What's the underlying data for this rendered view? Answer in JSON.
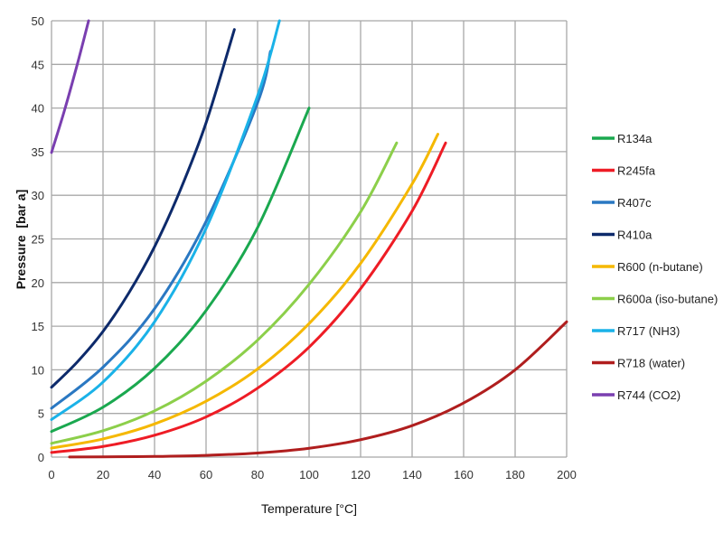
{
  "chart_data": {
    "type": "line",
    "title": "",
    "xlabel": "Temperature [°C]",
    "ylabel": "Pressure  [bar a]",
    "xlim": [
      0,
      200
    ],
    "ylim": [
      0,
      50
    ],
    "xticks": [
      0,
      20,
      40,
      60,
      80,
      100,
      120,
      140,
      160,
      180,
      200
    ],
    "yticks": [
      0,
      5,
      10,
      15,
      20,
      25,
      30,
      35,
      40,
      45,
      50
    ],
    "grid": true,
    "legend_position": "right",
    "series": [
      {
        "name": "R134a",
        "color": "#1aa84f",
        "x": [
          0,
          20,
          40,
          60,
          80,
          100
        ],
        "y": [
          2.93,
          5.72,
          10.17,
          16.8,
          26.3,
          40
        ]
      },
      {
        "name": "R245fa",
        "color": "#ee1c25",
        "x": [
          0,
          20,
          40,
          60,
          80,
          100,
          120,
          140,
          153
        ],
        "y": [
          0.53,
          1.22,
          2.5,
          4.6,
          7.9,
          12.6,
          19.3,
          28.2,
          36
        ]
      },
      {
        "name": "R407c",
        "color": "#2a78c2",
        "x": [
          0,
          20,
          40,
          60,
          80,
          85
        ],
        "y": [
          5.6,
          10.3,
          17,
          27,
          40.6,
          46.5
        ]
      },
      {
        "name": "R410a",
        "color": "#0d2a6b",
        "x": [
          0,
          10,
          20,
          30,
          40,
          50,
          60,
          71
        ],
        "y": [
          8,
          10.9,
          14.4,
          18.8,
          24.1,
          30.6,
          38.3,
          49
        ]
      },
      {
        "name": "R600 (n-butane)",
        "color": "#f5b800",
        "x": [
          0,
          20,
          40,
          60,
          80,
          100,
          120,
          140,
          150
        ],
        "y": [
          1.03,
          2.08,
          3.8,
          6.4,
          10.1,
          15.3,
          22.2,
          31.3,
          37
        ]
      },
      {
        "name": "R600a (iso-butane)",
        "color": "#8ccf4a",
        "x": [
          0,
          20,
          40,
          60,
          80,
          100,
          120,
          134
        ],
        "y": [
          1.57,
          3.02,
          5.3,
          8.7,
          13.4,
          19.8,
          28.1,
          36
        ]
      },
      {
        "name": "R717 (NH3)",
        "color": "#1ab2e8",
        "x": [
          0,
          20,
          40,
          60,
          80,
          88.5
        ],
        "y": [
          4.3,
          8.6,
          15.5,
          26.2,
          41.4,
          50
        ]
      },
      {
        "name": "R718 (water)",
        "color": "#b01e1e",
        "x": [
          7,
          20,
          40,
          60,
          80,
          100,
          120,
          140,
          160,
          180,
          200
        ],
        "y": [
          0.01,
          0.023,
          0.074,
          0.2,
          0.47,
          1.01,
          1.99,
          3.6,
          6.2,
          10.0,
          15.5
        ]
      },
      {
        "name": "R744 (CO2)",
        "color": "#7a3fb0",
        "x": [
          0,
          5,
          10,
          14.4
        ],
        "y": [
          34.9,
          39.7,
          45,
          50
        ]
      }
    ]
  }
}
